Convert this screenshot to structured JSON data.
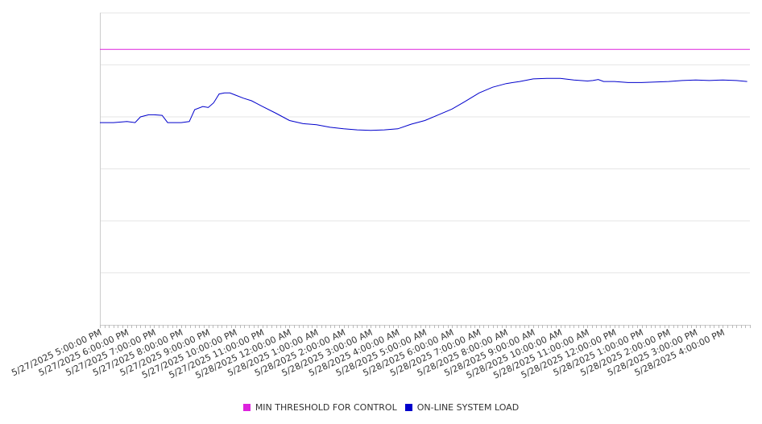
{
  "chart_data": {
    "type": "line",
    "x_labels": [
      "5/27/2025 5:00:00 PM",
      "5/27/2025 6:00:00 PM",
      "5/27/2025 7:00:00 PM",
      "5/27/2025 8:00:00 PM",
      "5/27/2025 9:00:00 PM",
      "5/27/2025 10:00:00 PM",
      "5/27/2025 11:00:00 PM",
      "5/28/2025 12:00:00 AM",
      "5/28/2025 1:00:00 AM",
      "5/28/2025 2:00:00 AM",
      "5/28/2025 3:00:00 AM",
      "5/28/2025 4:00:00 AM",
      "5/28/2025 5:00:00 AM",
      "5/28/2025 6:00:00 AM",
      "5/28/2025 7:00:00 AM",
      "5/28/2025 8:00:00 AM",
      "5/28/2025 9:00:00 AM",
      "5/28/2025 10:00:00 AM",
      "5/28/2025 11:00:00 AM",
      "5/28/2025 12:00:00 PM",
      "5/28/2025 1:00:00 PM",
      "5/28/2025 2:00:00 PM",
      "5/28/2025 3:00:00 PM",
      "5/28/2025 4:00:00 PM"
    ],
    "y_grid_levels": 6,
    "y_tick_labels_shown": false,
    "grid": true,
    "legend_position": "bottom",
    "series": [
      {
        "name": "MIN THRESHOLD FOR CONTROL",
        "color": "#dd22dd",
        "values": [
          5.3,
          5.3,
          5.3,
          5.3,
          5.3,
          5.3,
          5.3,
          5.3,
          5.3,
          5.3,
          5.3,
          5.3,
          5.3,
          5.3,
          5.3,
          5.3,
          5.3,
          5.3,
          5.3,
          5.3,
          5.3,
          5.3,
          5.3,
          5.3,
          5.3
        ]
      },
      {
        "name": "ON-LINE SYSTEM LOAD",
        "color": "#0000cc",
        "x_hours": [
          0,
          0.5,
          1,
          1.3,
          1.5,
          1.8,
          2,
          2.3,
          2.5,
          2.8,
          3,
          3.3,
          3.5,
          3.8,
          4,
          4.2,
          4.4,
          4.6,
          4.8,
          5,
          5.3,
          5.6,
          6,
          6.5,
          7,
          7.5,
          8,
          8.5,
          9,
          9.5,
          10,
          10.5,
          11,
          11.5,
          12,
          12.5,
          13,
          13.5,
          14,
          14.5,
          15,
          15.5,
          16,
          16.5,
          17,
          17.5,
          18,
          18.2,
          18.4,
          18.6,
          19,
          19.5,
          20,
          20.5,
          21,
          21.5,
          22,
          22.5,
          23,
          23.5,
          23.9
        ],
        "values": [
          3.89,
          3.89,
          3.91,
          3.89,
          4.0,
          4.04,
          4.04,
          4.03,
          3.89,
          3.89,
          3.89,
          3.91,
          4.14,
          4.2,
          4.18,
          4.27,
          4.44,
          4.46,
          4.46,
          4.42,
          4.36,
          4.31,
          4.2,
          4.07,
          3.93,
          3.87,
          3.85,
          3.8,
          3.77,
          3.75,
          3.74,
          3.75,
          3.77,
          3.86,
          3.93,
          4.04,
          4.15,
          4.3,
          4.46,
          4.57,
          4.64,
          4.68,
          4.73,
          4.74,
          4.74,
          4.71,
          4.69,
          4.7,
          4.72,
          4.68,
          4.68,
          4.66,
          4.66,
          4.67,
          4.68,
          4.7,
          4.71,
          4.7,
          4.71,
          4.7,
          4.68
        ]
      }
    ]
  },
  "legend": {
    "threshold_label": "MIN THRESHOLD FOR CONTROL",
    "load_label": "ON-LINE SYSTEM LOAD"
  }
}
